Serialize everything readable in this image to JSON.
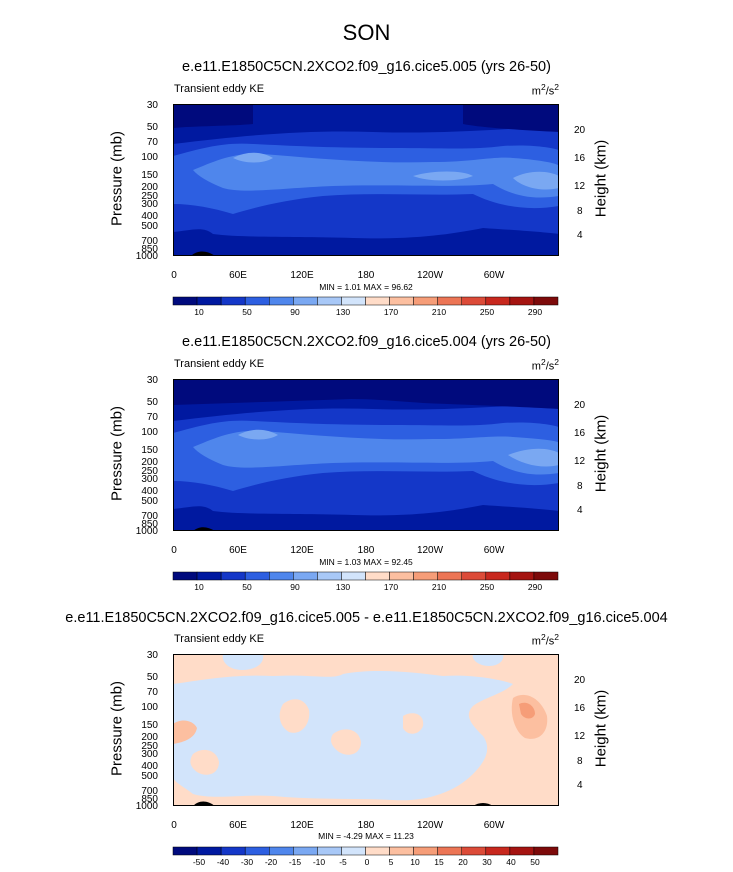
{
  "page_title": "SON",
  "chart_data": [
    {
      "type": "heatmap",
      "title": "e.e11.E1850C5CN.2XCO2.f09_g16.cice5.005 (yrs 26-50)",
      "left_label": "Transient eddy KE",
      "units": "m²/s²",
      "units_base": "m",
      "units_exp1": "2",
      "units_mid": "/s",
      "units_exp2": "2",
      "xlabel": "",
      "ylabel": "Pressure (mb)",
      "y2label": "Height (km)",
      "x_ticks": [
        "0",
        "60E",
        "120E",
        "180",
        "120W",
        "60W"
      ],
      "y_ticks": [
        "30",
        "50",
        "70",
        "100",
        "150",
        "200",
        "250",
        "300",
        "400",
        "500",
        "700",
        "850",
        "1000"
      ],
      "height_ticks": [
        "20",
        "16",
        "12",
        "8",
        "4"
      ],
      "min_max_text": "MIN =   1.01  MAX =  96.62",
      "colorbar_labels": [
        "10",
        "50",
        "90",
        "130",
        "170",
        "210",
        "250",
        "290"
      ],
      "colorbar_colors": [
        "#000a7d",
        "#0019a0",
        "#1437c8",
        "#2d5fe1",
        "#4f86ec",
        "#7aa8f2",
        "#a8c8f7",
        "#d2e4fb",
        "#ffdcc8",
        "#fcbfa0",
        "#f69d78",
        "#ec7555",
        "#dc4b38",
        "#c8281e",
        "#a51411",
        "#7d0a0a"
      ],
      "min": 1.01,
      "max": 96.62
    },
    {
      "type": "heatmap",
      "title": "e.e11.E1850C5CN.2XCO2.f09_g16.cice5.004 (yrs 26-50)",
      "left_label": "Transient eddy KE",
      "units": "m²/s²",
      "units_base": "m",
      "units_exp1": "2",
      "units_mid": "/s",
      "units_exp2": "2",
      "ylabel": "Pressure (mb)",
      "y2label": "Height (km)",
      "x_ticks": [
        "0",
        "60E",
        "120E",
        "180",
        "120W",
        "60W"
      ],
      "y_ticks": [
        "30",
        "50",
        "70",
        "100",
        "150",
        "200",
        "250",
        "300",
        "400",
        "500",
        "700",
        "850",
        "1000"
      ],
      "height_ticks": [
        "20",
        "16",
        "12",
        "8",
        "4"
      ],
      "min_max_text": "MIN =   1.03  MAX =  92.45",
      "colorbar_labels": [
        "10",
        "50",
        "90",
        "130",
        "170",
        "210",
        "250",
        "290"
      ],
      "min": 1.03,
      "max": 92.45
    },
    {
      "type": "heatmap",
      "title": "e.e11.E1850C5CN.2XCO2.f09_g16.cice5.005 - e.e11.E1850C5CN.2XCO2.f09_g16.cice5.004",
      "left_label": "Transient eddy KE",
      "units": "m²/s²",
      "units_base": "m",
      "units_exp1": "2",
      "units_mid": "/s",
      "units_exp2": "2",
      "ylabel": "Pressure (mb)",
      "y2label": "Height (km)",
      "x_ticks": [
        "0",
        "60E",
        "120E",
        "180",
        "120W",
        "60W"
      ],
      "y_ticks": [
        "30",
        "50",
        "70",
        "100",
        "150",
        "200",
        "250",
        "300",
        "400",
        "500",
        "700",
        "850",
        "1000"
      ],
      "height_ticks": [
        "20",
        "16",
        "12",
        "8",
        "4"
      ],
      "min_max_text": "MIN =  -4.29  MAX =  11.23",
      "colorbar_labels": [
        "-50",
        "-40",
        "-30",
        "-20",
        "-15",
        "-10",
        "-5",
        "0",
        "5",
        "10",
        "15",
        "20",
        "30",
        "40",
        "50"
      ],
      "colorbar_colors": [
        "#000a7d",
        "#0019a0",
        "#1437c8",
        "#2d5fe1",
        "#4f86ec",
        "#7aa8f2",
        "#a8c8f7",
        "#d2e4fb",
        "#ffdcc8",
        "#fcbfa0",
        "#f69d78",
        "#ec7555",
        "#dc4b38",
        "#c8281e",
        "#a51411",
        "#7d0a0a"
      ],
      "min": -4.29,
      "max": 11.23
    }
  ]
}
